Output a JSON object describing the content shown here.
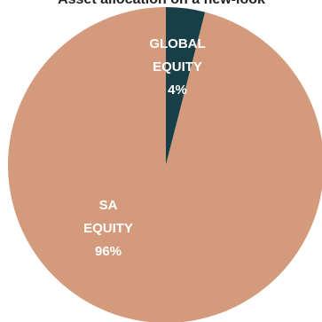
{
  "chart_data": {
    "type": "pie",
    "title": "Asset allocation on a new-look",
    "categories": [
      "GLOBAL EQUITY",
      "SA EQUITY"
    ],
    "values": [
      4,
      96
    ],
    "value_labels": [
      "4%",
      "96%"
    ],
    "colors": [
      "#183f47",
      "#d39a7b"
    ]
  }
}
